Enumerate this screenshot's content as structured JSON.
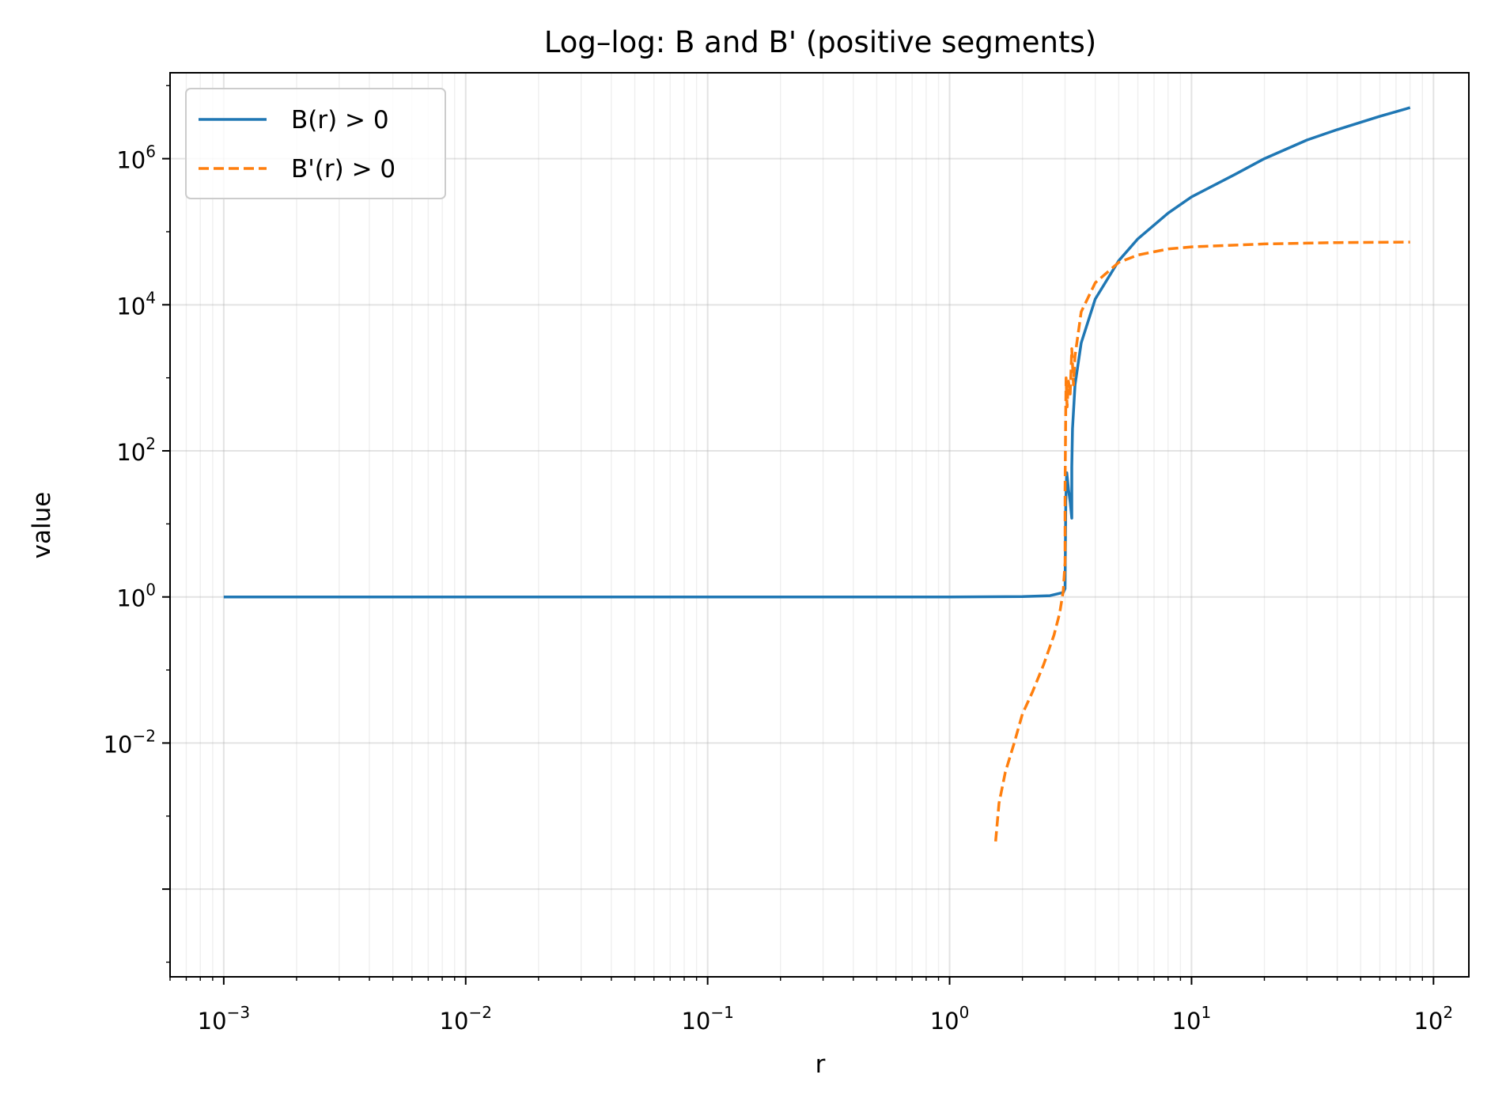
{
  "chart_data": {
    "type": "line",
    "title": "Log–log: B and B' (positive segments)",
    "xlabel": "r",
    "ylabel": "value",
    "xscale": "log",
    "yscale": "log",
    "xlim": [
      0.0006,
      140
    ],
    "ylim": [
      6.3e-06,
      15000000
    ],
    "grid": true,
    "legend_position": "upper-left",
    "x_ticks": [
      {
        "base": "10",
        "exp": "−3",
        "value": 0.001
      },
      {
        "base": "10",
        "exp": "−2",
        "value": 0.01
      },
      {
        "base": "10",
        "exp": "−1",
        "value": 0.1
      },
      {
        "base": "10",
        "exp": "0",
        "value": 1
      },
      {
        "base": "10",
        "exp": "1",
        "value": 10
      },
      {
        "base": "10",
        "exp": "2",
        "value": 100
      }
    ],
    "y_ticks": [
      {
        "base": "10",
        "exp": "−2",
        "value": 0.01
      },
      {
        "base": "10",
        "exp": "0",
        "value": 1
      },
      {
        "base": "10",
        "exp": "2",
        "value": 100
      },
      {
        "base": "10",
        "exp": "4",
        "value": 10000
      },
      {
        "base": "10",
        "exp": "6",
        "value": 1000000
      }
    ],
    "series": [
      {
        "name": "B(r) > 0",
        "color": "#1f77b4",
        "dash": "solid",
        "points": [
          [
            0.001,
            1.0
          ],
          [
            0.01,
            1.0
          ],
          [
            0.1,
            1.0
          ],
          [
            1.0,
            1.0
          ],
          [
            2.0,
            1.01
          ],
          [
            2.6,
            1.04
          ],
          [
            2.95,
            1.15
          ],
          [
            3.0,
            1.3
          ],
          [
            3.02,
            20
          ],
          [
            3.05,
            50
          ],
          [
            3.1,
            30
          ],
          [
            3.15,
            20
          ],
          [
            3.2,
            12
          ],
          [
            3.2,
            60
          ],
          [
            3.22,
            200
          ],
          [
            3.3,
            800
          ],
          [
            3.5,
            3000
          ],
          [
            4.0,
            12000
          ],
          [
            5.0,
            40000
          ],
          [
            6.0,
            80000
          ],
          [
            8.0,
            180000
          ],
          [
            10.0,
            300000
          ],
          [
            15.0,
            600000
          ],
          [
            20.0,
            1000000
          ],
          [
            30.0,
            1800000
          ],
          [
            40.0,
            2500000
          ],
          [
            60.0,
            3800000
          ],
          [
            80.0,
            5000000
          ]
        ]
      },
      {
        "name": "B'(r) > 0",
        "color": "#ff7f0e",
        "dash": "dashed",
        "points": [
          [
            1.55,
            0.00045
          ],
          [
            1.6,
            0.0015
          ],
          [
            1.7,
            0.004
          ],
          [
            1.85,
            0.01
          ],
          [
            2.0,
            0.025
          ],
          [
            2.2,
            0.05
          ],
          [
            2.45,
            0.12
          ],
          [
            2.7,
            0.3
          ],
          [
            2.85,
            0.6
          ],
          [
            2.95,
            1.2
          ],
          [
            3.0,
            3
          ],
          [
            3.0,
            30
          ],
          [
            3.02,
            400
          ],
          [
            3.03,
            1000
          ],
          [
            3.06,
            400
          ],
          [
            3.1,
            900
          ],
          [
            3.15,
            600
          ],
          [
            3.2,
            2500
          ],
          [
            3.25,
            800
          ],
          [
            3.3,
            2000
          ],
          [
            3.5,
            8000
          ],
          [
            4.0,
            20000
          ],
          [
            5.0,
            38000
          ],
          [
            6.0,
            48000
          ],
          [
            8.0,
            58000
          ],
          [
            10.0,
            62000
          ],
          [
            20.0,
            68000
          ],
          [
            40.0,
            71000
          ],
          [
            80.0,
            72000
          ]
        ]
      }
    ]
  }
}
